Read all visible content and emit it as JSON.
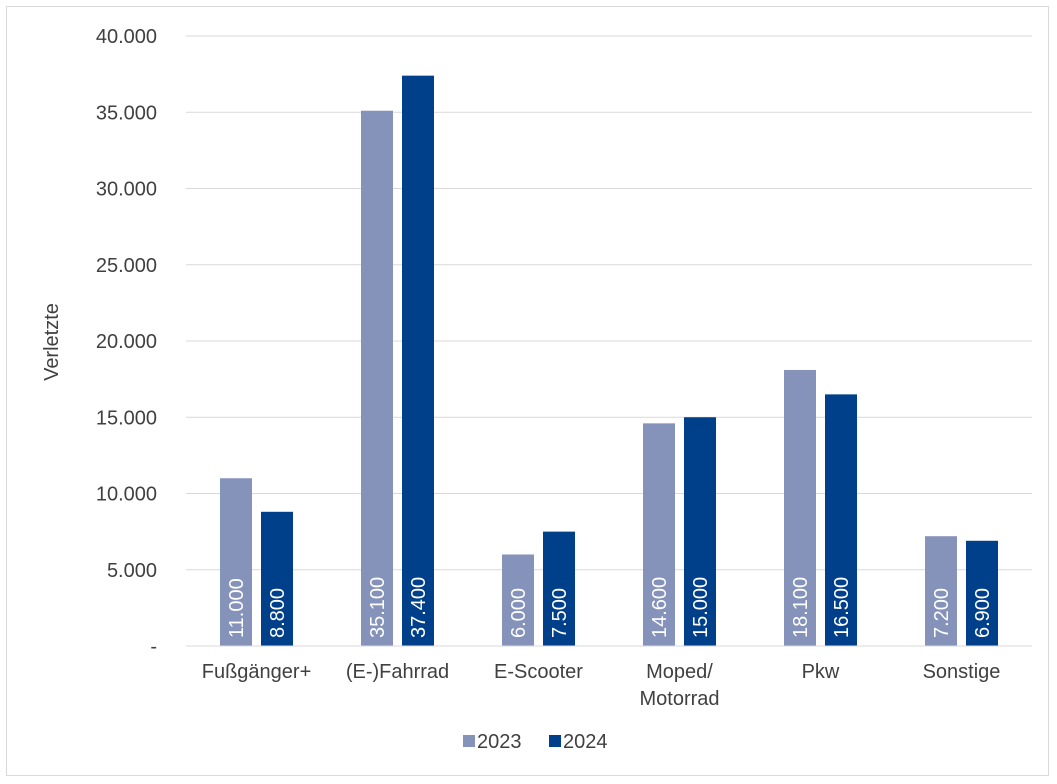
{
  "chart_data": {
    "type": "bar",
    "title": "",
    "xlabel": "",
    "ylabel": "Verletzte",
    "ylim": [
      0,
      40000
    ],
    "yticks": [
      0,
      5000,
      10000,
      15000,
      20000,
      25000,
      30000,
      35000,
      40000
    ],
    "ytick_labels": [
      "-",
      "5.000",
      "10.000",
      "15.000",
      "20.000",
      "25.000",
      "30.000",
      "35.000",
      "40.000"
    ],
    "categories": [
      [
        "Fußgänger+"
      ],
      [
        "(E-)Fahrrad"
      ],
      [
        "E-Scooter"
      ],
      [
        "Moped/",
        "Motorrad"
      ],
      [
        "Pkw"
      ],
      [
        "Sonstige"
      ]
    ],
    "series": [
      {
        "name": "2023",
        "color": "#8592BA",
        "values": [
          11000,
          35100,
          6000,
          14600,
          18100,
          7200
        ],
        "labels": [
          "11.000",
          "35.100",
          "6.000",
          "14.600",
          "18.100",
          "7.200"
        ]
      },
      {
        "name": "2024",
        "color": "#003F8A",
        "values": [
          8800,
          37400,
          7500,
          15000,
          16500,
          6900
        ],
        "labels": [
          "8.800",
          "37.400",
          "7.500",
          "15.000",
          "16.500",
          "6.900"
        ]
      }
    ],
    "grid": true,
    "legend": "bottom",
    "data_labels": "inside-base-rotated"
  }
}
